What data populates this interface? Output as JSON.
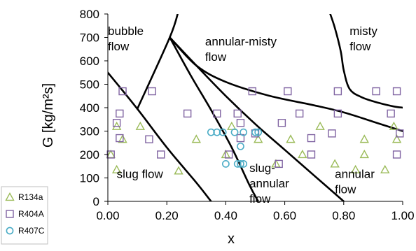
{
  "chart_data": {
    "type": "scatter",
    "xlabel": "x",
    "ylabel": "G [kg/m²s]",
    "xlim": [
      0,
      1
    ],
    "ylim": [
      0,
      800
    ],
    "x_ticks": [
      0,
      0.2,
      0.4,
      0.6,
      0.8,
      1.0
    ],
    "x_tick_labels": [
      "0.00",
      "0.20",
      "0.40",
      "0.60",
      "0.80",
      "1.00"
    ],
    "y_ticks": [
      0,
      100,
      200,
      300,
      400,
      500,
      600,
      700,
      800
    ],
    "y_tick_labels": [
      "0",
      "100",
      "200",
      "300",
      "400",
      "500",
      "600",
      "700",
      "800"
    ],
    "grid": false,
    "legend_position": "bottom-left",
    "series": [
      {
        "name": "R134a",
        "marker": "triangle",
        "color": "#9bbb59",
        "points": [
          [
            0.01,
            200
          ],
          [
            0.03,
            135
          ],
          [
            0.03,
            320
          ],
          [
            0.05,
            265
          ],
          [
            0.11,
            320
          ],
          [
            0.24,
            130
          ],
          [
            0.3,
            265
          ],
          [
            0.4,
            200
          ],
          [
            0.42,
            320
          ],
          [
            0.51,
            265
          ],
          [
            0.57,
            160
          ],
          [
            0.62,
            265
          ],
          [
            0.66,
            200
          ],
          [
            0.72,
            320
          ],
          [
            0.77,
            160
          ],
          [
            0.84,
            135
          ],
          [
            0.87,
            265
          ],
          [
            0.87,
            200
          ],
          [
            0.94,
            135
          ],
          [
            0.97,
            320
          ],
          [
            0.98,
            265
          ]
        ]
      },
      {
        "name": "R404A",
        "marker": "square",
        "color": "#8064a2",
        "points": [
          [
            0.01,
            200
          ],
          [
            0.03,
            335
          ],
          [
            0.04,
            375
          ],
          [
            0.04,
            270
          ],
          [
            0.05,
            470
          ],
          [
            0.15,
            470
          ],
          [
            0.14,
            265
          ],
          [
            0.18,
            200
          ],
          [
            0.27,
            375
          ],
          [
            0.37,
            375
          ],
          [
            0.41,
            200
          ],
          [
            0.44,
            375
          ],
          [
            0.45,
            335
          ],
          [
            0.45,
            270
          ],
          [
            0.49,
            470
          ],
          [
            0.5,
            290
          ],
          [
            0.58,
            160
          ],
          [
            0.61,
            470
          ],
          [
            0.59,
            335
          ],
          [
            0.65,
            375
          ],
          [
            0.69,
            200
          ],
          [
            0.69,
            270
          ],
          [
            0.76,
            290
          ],
          [
            0.78,
            470
          ],
          [
            0.78,
            375
          ],
          [
            0.91,
            470
          ],
          [
            0.96,
            375
          ],
          [
            0.98,
            470
          ],
          [
            0.99,
            290
          ],
          [
            0.98,
            200
          ]
        ]
      },
      {
        "name": "R407C",
        "marker": "circle",
        "color": "#4bacc6",
        "points": [
          [
            0.35,
            295
          ],
          [
            0.37,
            295
          ],
          [
            0.39,
            295
          ],
          [
            0.4,
            160
          ],
          [
            0.43,
            295
          ],
          [
            0.44,
            160
          ],
          [
            0.45,
            160
          ],
          [
            0.46,
            160
          ],
          [
            0.45,
            235
          ],
          [
            0.46,
            295
          ],
          [
            0.5,
            295
          ],
          [
            0.51,
            295
          ]
        ]
      }
    ],
    "boundaries": [
      {
        "points": [
          [
            0.0,
            550
          ],
          [
            0.1,
            395
          ],
          [
            0.2,
            230
          ],
          [
            0.3,
            80
          ],
          [
            0.35,
            0
          ]
        ]
      },
      {
        "points": [
          [
            0.1,
            395
          ],
          [
            0.21,
            700
          ],
          [
            0.24,
            815
          ]
        ]
      },
      {
        "points": [
          [
            0.21,
            700
          ],
          [
            0.28,
            540
          ],
          [
            0.35,
            390
          ],
          [
            0.42,
            230
          ],
          [
            0.48,
            70
          ],
          [
            0.51,
            0
          ]
        ]
      },
      {
        "points": [
          [
            0.21,
            700
          ],
          [
            0.3,
            580
          ],
          [
            0.4,
            450
          ],
          [
            0.5,
            330
          ],
          [
            0.6,
            220
          ],
          [
            0.7,
            110
          ],
          [
            0.8,
            0
          ]
        ]
      },
      {
        "points": [
          [
            0.21,
            700
          ],
          [
            0.3,
            580
          ],
          [
            0.4,
            510
          ],
          [
            0.55,
            450
          ],
          [
            0.7,
            410
          ],
          [
            0.8,
            380
          ],
          [
            0.9,
            340
          ],
          [
            1.0,
            300
          ]
        ]
      },
      {
        "points": [
          [
            0.75,
            815
          ],
          [
            0.77,
            740
          ],
          [
            0.79,
            640
          ],
          [
            0.8,
            560
          ],
          [
            0.82,
            480
          ],
          [
            0.86,
            445
          ],
          [
            0.92,
            420
          ],
          [
            0.97,
            405
          ],
          [
            1.0,
            400
          ]
        ]
      }
    ],
    "annotations": [
      {
        "lines": [
          "bubble",
          "flow"
        ],
        "x": 0.0,
        "y": 710
      },
      {
        "lines": [
          "annular-misty",
          "flow"
        ],
        "x": 0.33,
        "y": 665
      },
      {
        "lines": [
          "misty",
          "flow"
        ],
        "x": 0.82,
        "y": 710
      },
      {
        "lines": [
          "slug flow"
        ],
        "x": 0.03,
        "y": 100
      },
      {
        "lines": [
          "slug-",
          "annular",
          "flow"
        ],
        "x": 0.48,
        "y": 125
      },
      {
        "lines": [
          "annular",
          "flow"
        ],
        "x": 0.77,
        "y": 100
      }
    ]
  }
}
